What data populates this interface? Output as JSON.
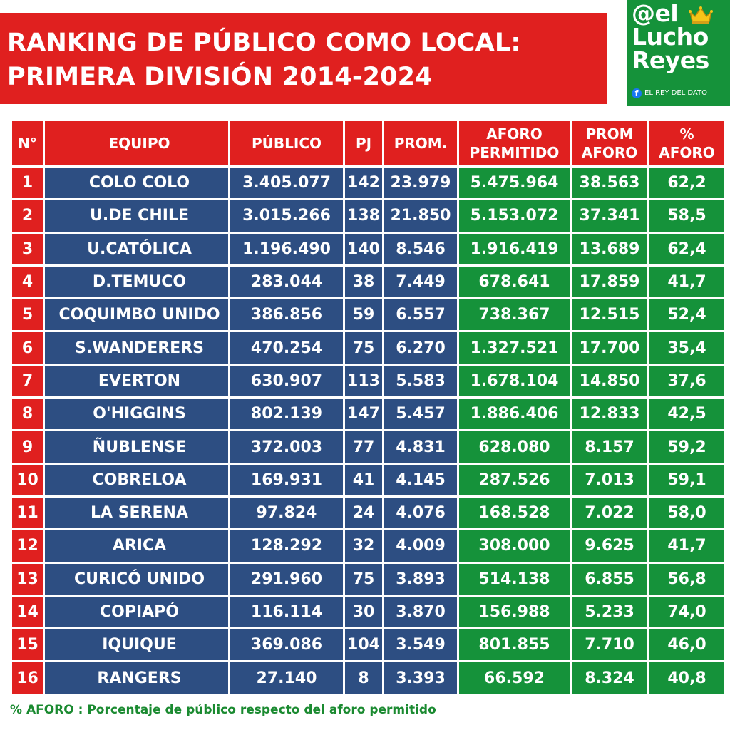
{
  "title": {
    "line1": "RANKING DE PÚBLICO COMO LOCAL:",
    "line2": "PRIMERA DIVISIÓN 2014-2024"
  },
  "logo": {
    "line1": "@el",
    "line2": "Lucho",
    "line3": "Reyes",
    "tagline": "EL REY DEL DATO",
    "icons": [
      "crown-icon",
      "facebook-icon"
    ]
  },
  "table": {
    "headers": {
      "num": "N°",
      "team": "EQUIPO",
      "public": "PÚBLICO",
      "pj": "PJ",
      "avg": "PROM.",
      "capacity_1": "AFORO",
      "capacity_2": "PERMITIDO",
      "avg_capacity_1": "PROM",
      "avg_capacity_2": "AFORO",
      "pct_1": "%",
      "pct_2": "AFORO"
    },
    "rows": [
      {
        "n": "1",
        "team": "COLO COLO",
        "public": "3.405.077",
        "pj": "142",
        "avg": "23.979",
        "capacity": "5.475.964",
        "avg_capacity": "38.563",
        "pct": "62,2"
      },
      {
        "n": "2",
        "team": "U.DE CHILE",
        "public": "3.015.266",
        "pj": "138",
        "avg": "21.850",
        "capacity": "5.153.072",
        "avg_capacity": "37.341",
        "pct": "58,5"
      },
      {
        "n": "3",
        "team": "U.CATÓLICA",
        "public": "1.196.490",
        "pj": "140",
        "avg": "8.546",
        "capacity": "1.916.419",
        "avg_capacity": "13.689",
        "pct": "62,4"
      },
      {
        "n": "4",
        "team": "D.TEMUCO",
        "public": "283.044",
        "pj": "38",
        "avg": "7.449",
        "capacity": "678.641",
        "avg_capacity": "17.859",
        "pct": "41,7"
      },
      {
        "n": "5",
        "team": "COQUIMBO UNIDO",
        "public": "386.856",
        "pj": "59",
        "avg": "6.557",
        "capacity": "738.367",
        "avg_capacity": "12.515",
        "pct": "52,4"
      },
      {
        "n": "6",
        "team": "S.WANDERERS",
        "public": "470.254",
        "pj": "75",
        "avg": "6.270",
        "capacity": "1.327.521",
        "avg_capacity": "17.700",
        "pct": "35,4"
      },
      {
        "n": "7",
        "team": "EVERTON",
        "public": "630.907",
        "pj": "113",
        "avg": "5.583",
        "capacity": "1.678.104",
        "avg_capacity": "14.850",
        "pct": "37,6"
      },
      {
        "n": "8",
        "team": "O'HIGGINS",
        "public": "802.139",
        "pj": "147",
        "avg": "5.457",
        "capacity": "1.886.406",
        "avg_capacity": "12.833",
        "pct": "42,5"
      },
      {
        "n": "9",
        "team": "ÑUBLENSE",
        "public": "372.003",
        "pj": "77",
        "avg": "4.831",
        "capacity": "628.080",
        "avg_capacity": "8.157",
        "pct": "59,2"
      },
      {
        "n": "10",
        "team": "COBRELOA",
        "public": "169.931",
        "pj": "41",
        "avg": "4.145",
        "capacity": "287.526",
        "avg_capacity": "7.013",
        "pct": "59,1"
      },
      {
        "n": "11",
        "team": "LA SERENA",
        "public": "97.824",
        "pj": "24",
        "avg": "4.076",
        "capacity": "168.528",
        "avg_capacity": "7.022",
        "pct": "58,0"
      },
      {
        "n": "12",
        "team": "ARICA",
        "public": "128.292",
        "pj": "32",
        "avg": "4.009",
        "capacity": "308.000",
        "avg_capacity": "9.625",
        "pct": "41,7"
      },
      {
        "n": "13",
        "team": "CURICÓ UNIDO",
        "public": "291.960",
        "pj": "75",
        "avg": "3.893",
        "capacity": "514.138",
        "avg_capacity": "6.855",
        "pct": "56,8"
      },
      {
        "n": "14",
        "team": "COPIAPÓ",
        "public": "116.114",
        "pj": "30",
        "avg": "3.870",
        "capacity": "156.988",
        "avg_capacity": "5.233",
        "pct": "74,0"
      },
      {
        "n": "15",
        "team": "IQUIQUE",
        "public": "369.086",
        "pj": "104",
        "avg": "3.549",
        "capacity": "801.855",
        "avg_capacity": "7.710",
        "pct": "46,0"
      },
      {
        "n": "16",
        "team": "RANGERS",
        "public": "27.140",
        "pj": "8",
        "avg": "3.393",
        "capacity": "66.592",
        "avg_capacity": "8.324",
        "pct": "40,8"
      }
    ]
  },
  "footnote": "% AFORO : Porcentaje de público respecto del aforo permitido",
  "colors": {
    "red": "#e0201f",
    "blue": "#2d4e82",
    "green": "#15923a",
    "footnote_green": "#1a8a30"
  }
}
